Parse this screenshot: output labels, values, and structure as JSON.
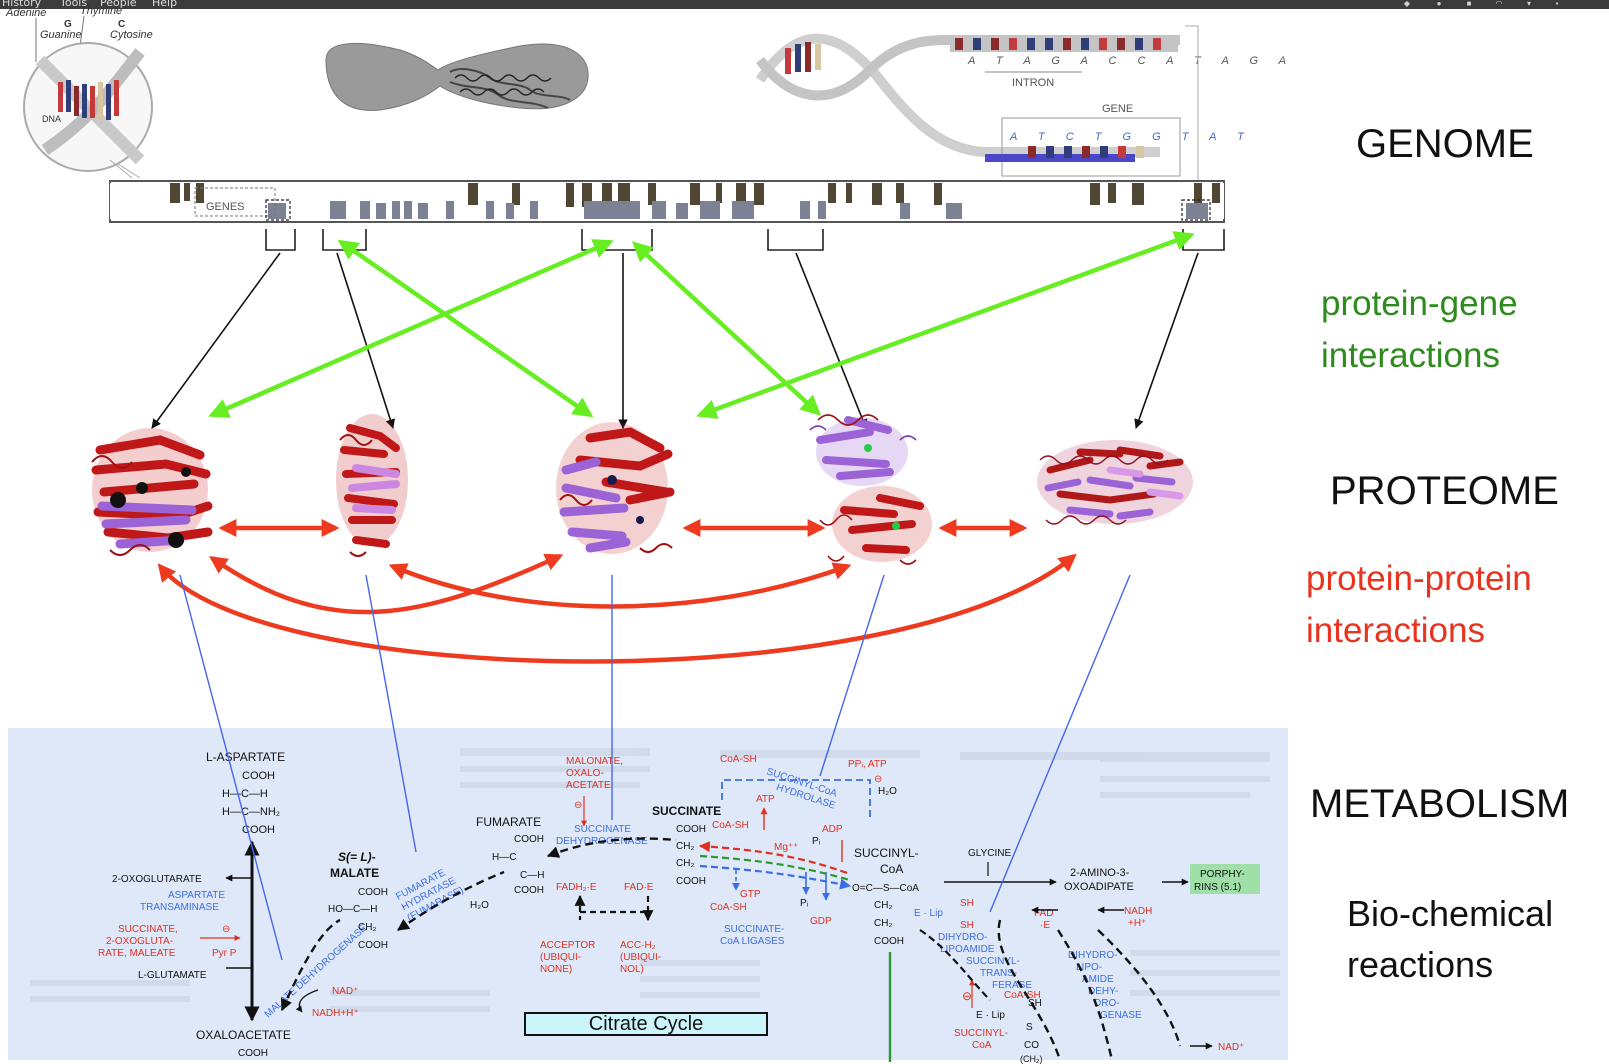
{
  "menu": {
    "history": "History",
    "tools": "Tools",
    "people": "People",
    "help": "Help"
  },
  "labels": {
    "genome": "GENOME",
    "protein_gene": [
      "protein-gene",
      "interactions"
    ],
    "proteome": "PROTEOME",
    "protein_protein": [
      "protein-protein",
      "interactions"
    ],
    "metabolism": "METABOLISM",
    "biochem": [
      "Bio-chemical",
      "reactions"
    ]
  },
  "dna": {
    "adenine": "Adenine",
    "thymine": "Thymine",
    "g": "G",
    "c": "C",
    "guanine": "Guanine",
    "cytosine": "Cytosine",
    "dna": "DNA",
    "genes": "GENES",
    "seq_top": "A T A G A C C A T A G A",
    "intron": "INTRON",
    "gene": "GENE",
    "seq_bottom": "A T C T G G T A T"
  },
  "colors": {
    "green_arrow": "#66ee22",
    "red_arrow": "#ee3a1e",
    "blue_line": "#4466ee",
    "black": "#111111",
    "metabolic_bg": "#dfe8f8",
    "caption_bg": "#ccf5fb",
    "protein_red": "#cc1a1a",
    "protein_purple": "#9b63d6"
  },
  "pathway": {
    "caption": "Citrate Cycle",
    "l_aspartate": "L-ASPARTATE",
    "cooh": "COOH",
    "hch": "H—C—H",
    "hcnh2": "H—C—NH₂",
    "oxoglutarate": "2-OXOGLUTARATE",
    "asp_transaminase": [
      "ASPARTATE",
      "TRANSAMINASE"
    ],
    "succ_inh": [
      "SUCCINATE,",
      "2-OXOGLUTA-",
      "RATE, MALEATE"
    ],
    "pyr_p": "Pyr P",
    "l_glutamate": "L-GLUTAMATE",
    "malate_dh": "MALATE DEHYDROGENASE",
    "nad_plus": "NAD⁺",
    "nadh_h": "NADH+H⁺",
    "oxaloacetate": "OXALOACETATE",
    "s_malate": [
      "S(= L)-",
      "MALATE"
    ],
    "fumarate_hydratase": [
      "FUMARATE",
      "HYDRATASE",
      "(FUMARASE)"
    ],
    "hoch": "HO—C—H",
    "ch2": "CH₂",
    "h2o": "H₂O",
    "fumarate": "FUMARATE",
    "malonate": [
      "MALONATE,",
      "OXALO-",
      "ACETATE"
    ],
    "succ_dh": [
      "SUCCINATE",
      "DEHYDROGENASE"
    ],
    "fadh2_e": "FADH₂·E",
    "fad_e": "FAD·E",
    "acceptor": [
      "ACCEPTOR",
      "(UBIQUI-",
      "NONE)"
    ],
    "acc_h2": [
      "ACC·H₂",
      "(UBIQUI-",
      "NOL)"
    ],
    "coa_sh": "CoA-SH",
    "succinate": "SUCCINATE",
    "atp": "ATP",
    "adp": "ADP",
    "mg": "Mg⁺⁺",
    "pi": "Pᵢ",
    "gtp": "GTP",
    "gdp": "GDP",
    "succ_coa_ligases": [
      "SUCCINATE-",
      "CoA LIGASES"
    ],
    "succ_coa_hydrolase": [
      "SUCCINYL-CoA",
      "HYDROLASE"
    ],
    "ppi_atp": "PPᵢ, ATP",
    "succinyl_coa": [
      "SUCCINYL-",
      "CoA"
    ],
    "ocscoa": "O=C—S—CoA",
    "glycine": "GLYCINE",
    "amino_oxoadipate": [
      "2-AMINO-3-",
      "OXOADIPATE"
    ],
    "porphyrins": [
      "PORPHY-",
      "RINS (5.1)"
    ],
    "fad_e2": [
      "FAD",
      "·E"
    ],
    "nadh_h2": [
      "NADH",
      "+H⁺"
    ],
    "e_lip": "E · Lip",
    "sh": "SH",
    "dihydro_succ": [
      "DIHYDRO-",
      "LIPOAMIDE",
      "SUCCINYL-",
      "TRANS-",
      "FERASE"
    ],
    "dihydro_dh": [
      "DIHYDRO-",
      "LIPO-",
      "AMIDE",
      "DEHY-",
      "DRO-",
      "GENASE"
    ],
    "succinyl_coa_red": [
      "SUCCINYL-",
      "CoA"
    ],
    "s_label": "S",
    "co": "CO",
    "ch2_ch3": "(CH₂)",
    "nad_end": "NAD⁺"
  }
}
